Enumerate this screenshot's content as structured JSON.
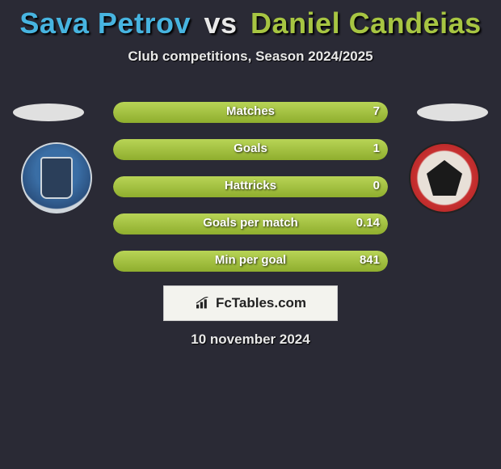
{
  "title": {
    "player1": "Sava Petrov",
    "vs": "vs",
    "player2": "Daniel Candeias",
    "player1_color": "#47b4e0",
    "player2_color": "#a7c542",
    "vs_color": "#e8e8e8",
    "fontsize": 36
  },
  "subtitle": "Club competitions, Season 2024/2025",
  "background_color": "#2a2a35",
  "bar": {
    "track_width": 340,
    "track_height": 26,
    "left_gradient": [
      "#5cc3eb",
      "#2e8fb8"
    ],
    "right_gradient": [
      "#b8d456",
      "#8fae2e"
    ],
    "label_color": "#ffffff",
    "label_fontsize": 15
  },
  "stats": [
    {
      "label": "Matches",
      "left_val": "",
      "right_val": "7",
      "left_pct": 0,
      "right_pct": 100
    },
    {
      "label": "Goals",
      "left_val": "",
      "right_val": "1",
      "left_pct": 0,
      "right_pct": 100
    },
    {
      "label": "Hattricks",
      "left_val": "",
      "right_val": "0",
      "left_pct": 0,
      "right_pct": 100
    },
    {
      "label": "Goals per match",
      "left_val": "",
      "right_val": "0.14",
      "left_pct": 0,
      "right_pct": 100
    },
    {
      "label": "Min per goal",
      "left_val": "",
      "right_val": "841",
      "left_pct": 0,
      "right_pct": 100
    }
  ],
  "brand": "FcTables.com",
  "date": "10 november 2024",
  "badges": {
    "left_colors": {
      "outer": "#cfd6dc",
      "mid": "#3a6ea5",
      "inner": "#2b3f5a"
    },
    "right_colors": {
      "outer": "#a82020",
      "mid": "#e8e0d8",
      "inner": "#1a1a1a"
    }
  },
  "ellipse_color": "#e0e0e0"
}
